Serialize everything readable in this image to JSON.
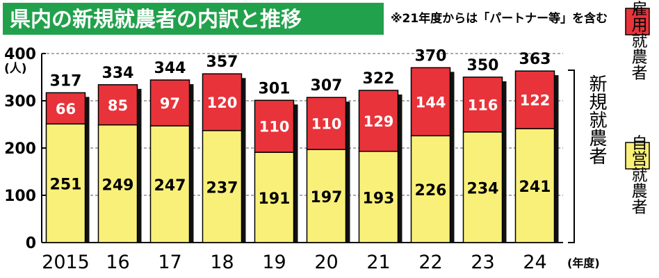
{
  "colors": {
    "self_employed": "#f9f07a",
    "employed": "#e8333a",
    "title_bg": "#22a14c",
    "title_fg": "#ffffff"
  },
  "chart_data": {
    "type": "bar",
    "stacked": true,
    "title": "県内の新規就農者の内訳と推移",
    "note": "※21年度からは「パートナー等」を含む",
    "ylabel": "(人)",
    "ylim": [
      0,
      400
    ],
    "yticks": [
      0,
      100,
      200,
      300,
      400
    ],
    "xunit": "(年度)",
    "group_label": "新規就農者",
    "categories": [
      "2015",
      "16",
      "17",
      "18",
      "19",
      "20",
      "21",
      "22",
      "23",
      "24"
    ],
    "series": [
      {
        "name": "自営就農者",
        "values": [
          251,
          249,
          247,
          237,
          191,
          197,
          193,
          226,
          234,
          241
        ]
      },
      {
        "name": "雇用就農者",
        "values": [
          66,
          85,
          97,
          120,
          110,
          110,
          129,
          144,
          116,
          122
        ]
      }
    ],
    "totals": [
      317,
      334,
      344,
      357,
      301,
      307,
      322,
      370,
      350,
      363
    ],
    "legend_position": "right"
  }
}
